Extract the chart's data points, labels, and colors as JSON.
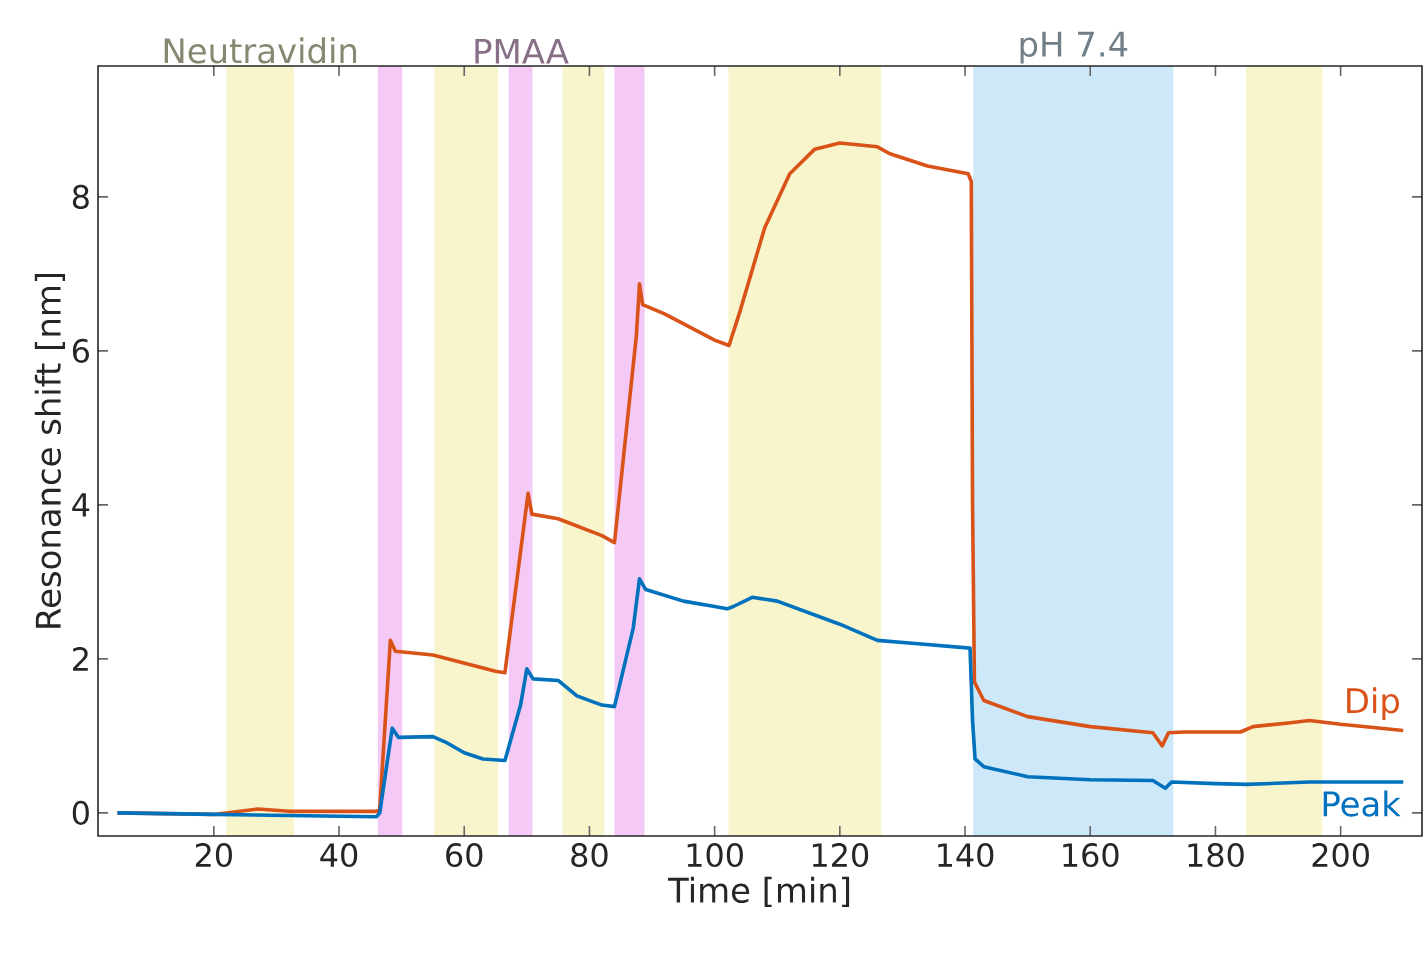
{
  "chart_data": {
    "type": "line",
    "xlabel": "Time [min]",
    "ylabel": "Resonance shift [nm]",
    "xlim": [
      1.5,
      213
    ],
    "ylim": [
      -0.3,
      9.7
    ],
    "xticks": [
      20,
      40,
      60,
      80,
      100,
      120,
      140,
      160,
      180,
      200
    ],
    "yticks": [
      0,
      2,
      4,
      6,
      8
    ],
    "bands": [
      {
        "axis": "x",
        "from": 22.0,
        "to": 32.8,
        "label": "Neutravidin",
        "color": "#f8f5cd"
      },
      {
        "axis": "x",
        "from": 46.2,
        "to": 50.1,
        "color": "#f5c9f5"
      },
      {
        "axis": "x",
        "from": 55.2,
        "to": 65.4,
        "color": "#f8f5cd"
      },
      {
        "axis": "x",
        "from": 67.1,
        "to": 70.9,
        "label": "PMAA",
        "color": "#f5c9f5"
      },
      {
        "axis": "x",
        "from": 75.7,
        "to": 82.4,
        "color": "#f8f5cd"
      },
      {
        "axis": "x",
        "from": 84.0,
        "to": 88.8,
        "color": "#f5c9f5"
      },
      {
        "axis": "x",
        "from": 102.2,
        "to": 126.6,
        "color": "#f8f5cd"
      },
      {
        "axis": "x",
        "from": 141.3,
        "to": 173.3,
        "label": "pH 7.4",
        "color": "#cde8f8"
      },
      {
        "axis": "x",
        "from": 184.9,
        "to": 197.1,
        "color": "#f8f5cd"
      }
    ],
    "series": [
      {
        "name": "Dip",
        "color": "#d95319",
        "x": [
          4.6,
          20,
          27,
          32,
          46,
          46.5,
          48.2,
          49,
          55,
          65,
          66.5,
          70.2,
          70.8,
          75,
          82,
          84,
          87.5,
          88,
          88.5,
          92,
          100,
          102.3,
          104,
          108,
          112,
          116,
          120,
          126,
          128,
          134,
          140.5,
          141.0,
          141.2,
          141.5,
          143,
          150,
          160,
          170,
          171.5,
          172.5,
          175,
          184,
          186,
          192,
          195,
          200,
          210
        ],
        "values": [
          0,
          -0.02,
          0.05,
          0.02,
          0.02,
          0.05,
          2.24,
          2.1,
          2.05,
          1.84,
          1.82,
          4.15,
          3.88,
          3.82,
          3.6,
          3.51,
          6.2,
          6.87,
          6.6,
          6.48,
          6.14,
          6.07,
          6.5,
          7.6,
          8.3,
          8.62,
          8.7,
          8.65,
          8.56,
          8.4,
          8.3,
          8.2,
          4,
          1.7,
          1.46,
          1.25,
          1.12,
          1.04,
          0.87,
          1.04,
          1.05,
          1.05,
          1.12,
          1.17,
          1.2,
          1.15,
          1.07
        ]
      },
      {
        "name": "Peak",
        "color": "#0072bd",
        "x": [
          4.6,
          20,
          46,
          46.5,
          48.5,
          49.5,
          55,
          57,
          60,
          63,
          66.5,
          69,
          70,
          71,
          75,
          78,
          82,
          84,
          87,
          88,
          89,
          95,
          100,
          102,
          103,
          106,
          110,
          120,
          126,
          132,
          140.8,
          141.2,
          141.6,
          143,
          150,
          160,
          170,
          172,
          173,
          180,
          185,
          195,
          210
        ],
        "values": [
          0,
          -0.02,
          -0.05,
          0,
          1.1,
          0.98,
          0.99,
          0.92,
          0.78,
          0.7,
          0.68,
          1.4,
          1.87,
          1.74,
          1.72,
          1.52,
          1.4,
          1.38,
          2.4,
          3.04,
          2.9,
          2.75,
          2.68,
          2.65,
          2.68,
          2.8,
          2.75,
          2.45,
          2.24,
          2.2,
          2.14,
          1.2,
          0.7,
          0.6,
          0.47,
          0.43,
          0.42,
          0.32,
          0.4,
          0.38,
          0.37,
          0.4,
          0.4
        ]
      }
    ]
  }
}
